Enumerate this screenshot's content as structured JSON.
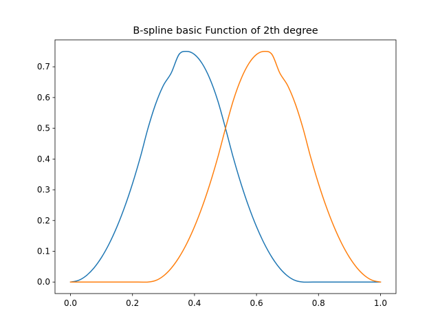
{
  "chart_data": {
    "type": "line",
    "title": "B-spline basic Function of 2th degree",
    "xlabel": "",
    "ylabel": "",
    "xlim": [
      -0.05,
      1.05
    ],
    "ylim": [
      -0.0375,
      0.7875
    ],
    "xticks": [
      0.0,
      0.2,
      0.4,
      0.6,
      0.8,
      1.0
    ],
    "xtick_labels": [
      "0.0",
      "0.2",
      "0.4",
      "0.6",
      "0.8",
      "1.0"
    ],
    "yticks": [
      0.0,
      0.1,
      0.2,
      0.3,
      0.4,
      0.5,
      0.6,
      0.7
    ],
    "ytick_labels": [
      "0.0",
      "0.1",
      "0.2",
      "0.3",
      "0.4",
      "0.5",
      "0.6",
      "0.7"
    ],
    "grid": false,
    "legend": "none",
    "series": [
      {
        "color": "#1f77b4",
        "x": [
          0.0,
          0.025,
          0.05,
          0.075,
          0.1,
          0.125,
          0.15,
          0.175,
          0.2,
          0.225,
          0.25,
          0.275,
          0.3,
          0.325,
          0.35,
          0.375,
          0.4,
          0.425,
          0.45,
          0.475,
          0.5,
          0.525,
          0.55,
          0.575,
          0.6,
          0.625,
          0.65,
          0.675,
          0.7,
          0.725,
          0.75,
          0.8,
          0.85,
          0.9,
          0.95,
          1.0
        ],
        "y": [
          0.0,
          0.005,
          0.02,
          0.045,
          0.08,
          0.125,
          0.18,
          0.245,
          0.32,
          0.405,
          0.5,
          0.58,
          0.64,
          0.68,
          0.74,
          0.75,
          0.74,
          0.71,
          0.66,
          0.59,
          0.5,
          0.405,
          0.32,
          0.245,
          0.18,
          0.125,
          0.08,
          0.045,
          0.02,
          0.005,
          0.0,
          0.0,
          0.0,
          0.0,
          0.0,
          0.0
        ]
      },
      {
        "color": "#ff7f0e",
        "x": [
          0.0,
          0.05,
          0.1,
          0.15,
          0.2,
          0.25,
          0.275,
          0.3,
          0.325,
          0.35,
          0.375,
          0.4,
          0.425,
          0.45,
          0.475,
          0.5,
          0.525,
          0.55,
          0.575,
          0.6,
          0.625,
          0.65,
          0.675,
          0.7,
          0.725,
          0.75,
          0.775,
          0.8,
          0.825,
          0.85,
          0.875,
          0.9,
          0.925,
          0.95,
          0.975,
          1.0
        ],
        "y": [
          0.0,
          0.0,
          0.0,
          0.0,
          0.0,
          0.0,
          0.005,
          0.02,
          0.045,
          0.08,
          0.125,
          0.18,
          0.245,
          0.32,
          0.405,
          0.5,
          0.59,
          0.66,
          0.71,
          0.74,
          0.75,
          0.74,
          0.68,
          0.64,
          0.58,
          0.5,
          0.405,
          0.32,
          0.245,
          0.18,
          0.125,
          0.08,
          0.045,
          0.02,
          0.005,
          0.0
        ]
      }
    ]
  }
}
